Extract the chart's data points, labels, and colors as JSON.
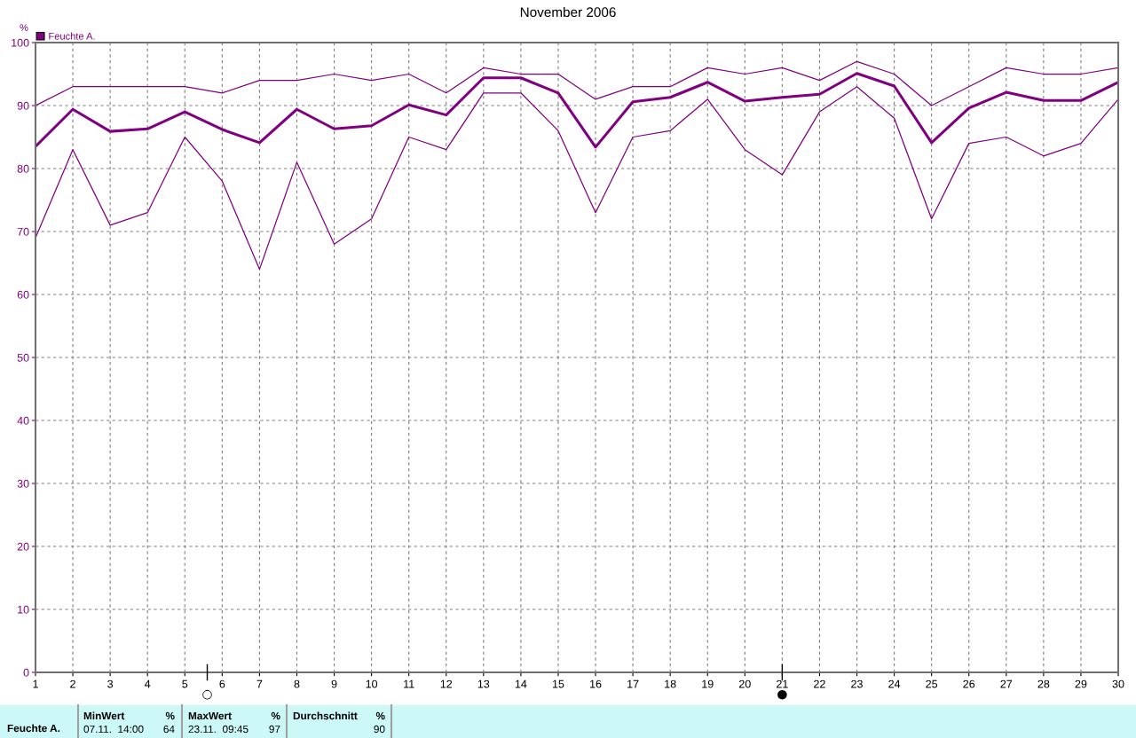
{
  "chart_data": {
    "type": "line",
    "title": "November 2006",
    "ylabel": "%",
    "x": [
      1,
      2,
      3,
      4,
      5,
      6,
      7,
      8,
      9,
      10,
      11,
      12,
      13,
      14,
      15,
      16,
      17,
      18,
      19,
      20,
      21,
      22,
      23,
      24,
      25,
      26,
      27,
      28,
      29,
      30
    ],
    "series": [
      {
        "color": "#800080",
        "values": [
          90,
          93,
          93,
          93,
          93,
          92,
          94,
          94,
          95,
          94,
          95,
          92,
          96,
          95,
          95,
          91,
          93,
          93,
          96,
          95,
          96,
          94,
          97,
          95,
          90,
          93,
          96,
          95,
          95,
          96
        ]
      },
      {
        "name": "Feuchte A.",
        "color": "#800080",
        "values": [
          83.5,
          89.4,
          85.9,
          86.3,
          89.0,
          86.2,
          84.1,
          89.4,
          86.3,
          86.8,
          90.1,
          88.5,
          94.4,
          94.4,
          92.0,
          83.4,
          90.6,
          91.3,
          93.7,
          90.7,
          91.3,
          91.8,
          95.1,
          93.1,
          84.1,
          89.6,
          92.1,
          90.8,
          90.8,
          93.7
        ]
      },
      {
        "color": "#800080",
        "values": [
          69,
          83,
          71,
          73,
          85,
          78,
          64,
          81,
          68,
          72,
          85,
          83,
          92,
          92,
          86,
          73,
          85,
          86,
          91,
          83,
          79,
          89,
          93,
          88,
          72,
          84,
          85,
          82,
          84,
          91
        ]
      }
    ],
    "xlim": [
      1,
      30
    ],
    "xticks": [
      1,
      2,
      3,
      4,
      5,
      6,
      7,
      8,
      9,
      10,
      11,
      12,
      13,
      14,
      15,
      16,
      17,
      18,
      19,
      20,
      21,
      22,
      23,
      24,
      25,
      26,
      27,
      28,
      29,
      30
    ],
    "ylim": [
      0,
      100
    ],
    "yticks": [
      0,
      10,
      20,
      30,
      40,
      50,
      60,
      70,
      80,
      90,
      100
    ],
    "grid": true,
    "legend": "top left",
    "marker": "none",
    "line_style": "solid",
    "ref_lines": [
      {
        "axis": "x",
        "value": 5.6,
        "label": "○",
        "color": "#000000"
      },
      {
        "axis": "x",
        "value": 21,
        "label": "●",
        "color": "#000000"
      }
    ],
    "annotations": [
      "Feuchte A.",
      "MinWert",
      "%",
      "07.11.  14:00",
      "64",
      "MaxWert",
      "%",
      "23.11.  09:45",
      "97",
      "Durchschnitt",
      "%",
      "90"
    ]
  }
}
